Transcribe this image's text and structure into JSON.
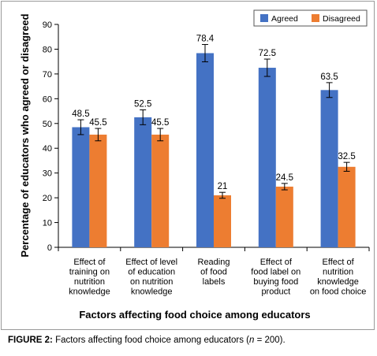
{
  "chart_data": {
    "type": "bar",
    "categories": [
      [
        "Effect of",
        "training on",
        "nutrition",
        "knowledge"
      ],
      [
        "Effect of level",
        "of education",
        "on nutrition",
        "knowledge"
      ],
      [
        "Reading",
        "of food",
        "labels"
      ],
      [
        "Effect of",
        "food label on",
        "buying food",
        "product"
      ],
      [
        "Effect of",
        "nutrition",
        "knowledge",
        "on food choice"
      ]
    ],
    "series": [
      {
        "name": "Agreed",
        "color": "#4472C4",
        "values": [
          48.5,
          52.5,
          78.4,
          72.5,
          63.5
        ],
        "labels": [
          "48.5",
          "52.5",
          "78.4",
          "72.5",
          "63.5"
        ],
        "errors": [
          3,
          3,
          3.5,
          3.5,
          3
        ]
      },
      {
        "name": "Disagreed",
        "color": "#ED7D31",
        "values": [
          45.5,
          45.5,
          21,
          24.5,
          32.5
        ],
        "labels": [
          "45.5",
          "45.5",
          "21",
          "24.5",
          "32.5"
        ],
        "errors": [
          2.5,
          2.5,
          1.2,
          1.3,
          1.8
        ]
      }
    ],
    "xlabel": "Factors affecting food choice among educators",
    "ylabel": "Percentage of educators who agreed or disagreed",
    "ylim": [
      0,
      90
    ],
    "yticks": [
      "0",
      "10",
      "20",
      "30",
      "40",
      "50",
      "60",
      "70",
      "80",
      "90"
    ],
    "grid": false,
    "legend": "top-right"
  },
  "caption": {
    "label": "FIGURE 2:",
    "text": " Factors affecting food choice among educators (",
    "n_symbol": "n",
    "n_value": " = 200)."
  }
}
